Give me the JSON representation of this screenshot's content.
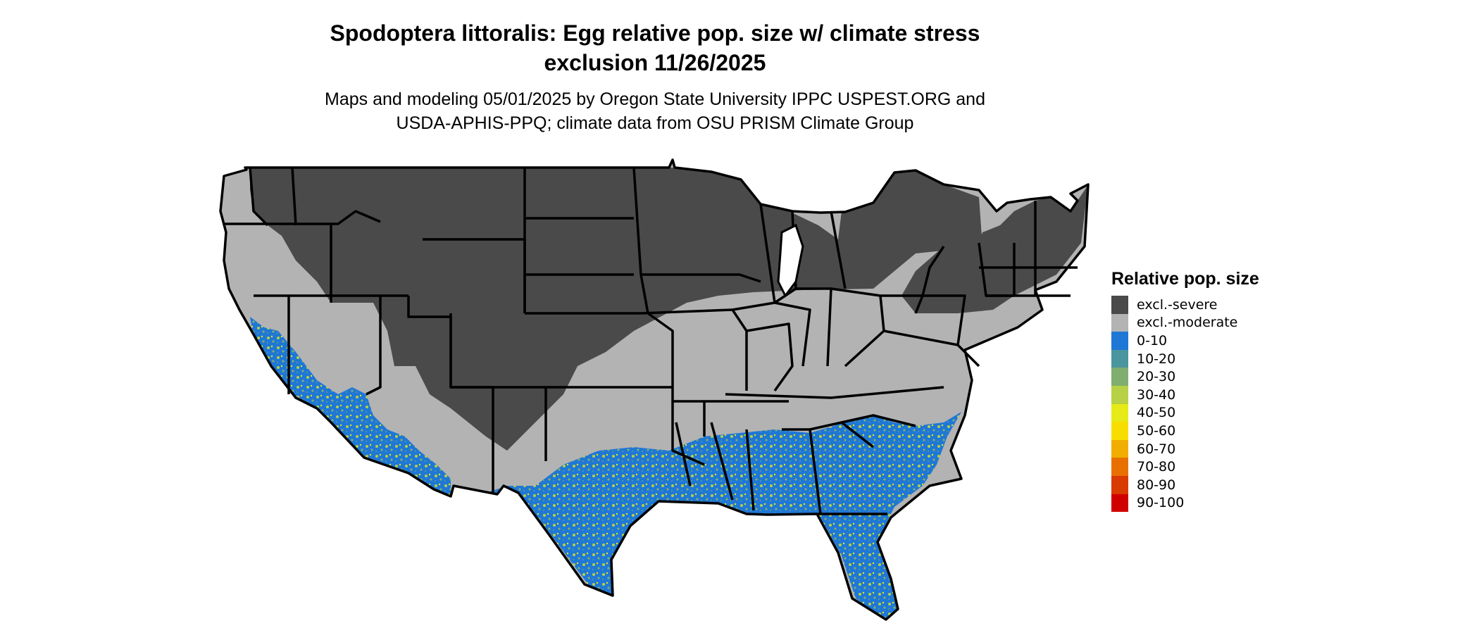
{
  "title_line1": "Spodoptera littoralis: Egg relative pop. size w/ climate stress",
  "title_line2": "exclusion 11/26/2025",
  "subtitle_line1": "Maps and modeling 05/01/2025 by Oregon State University IPPC USPEST.ORG and",
  "subtitle_line2": "USDA-APHIS-PPQ; climate data from OSU PRISM Climate Group",
  "legend": {
    "title": "Relative pop. size",
    "items": [
      {
        "label": "excl.-severe",
        "color": "#4a4a4a"
      },
      {
        "label": "excl.-moderate",
        "color": "#b3b3b3"
      },
      {
        "label": "0-10",
        "color": "#1f77d6"
      },
      {
        "label": "10-20",
        "color": "#4a959e"
      },
      {
        "label": "20-30",
        "color": "#7fae6f"
      },
      {
        "label": "30-40",
        "color": "#b7d045"
      },
      {
        "label": "40-50",
        "color": "#e6ea17"
      },
      {
        "label": "50-60",
        "color": "#f8de00"
      },
      {
        "label": "60-70",
        "color": "#f1ae00"
      },
      {
        "label": "70-80",
        "color": "#e87000"
      },
      {
        "label": "80-90",
        "color": "#d93a00"
      },
      {
        "label": "90-100",
        "color": "#d10000"
      }
    ]
  },
  "colors": {
    "severe": "#4a4a4a",
    "moderate": "#b3b3b3",
    "low": "#1f77d6",
    "mid": "#b7d045",
    "border": "#000000"
  }
}
